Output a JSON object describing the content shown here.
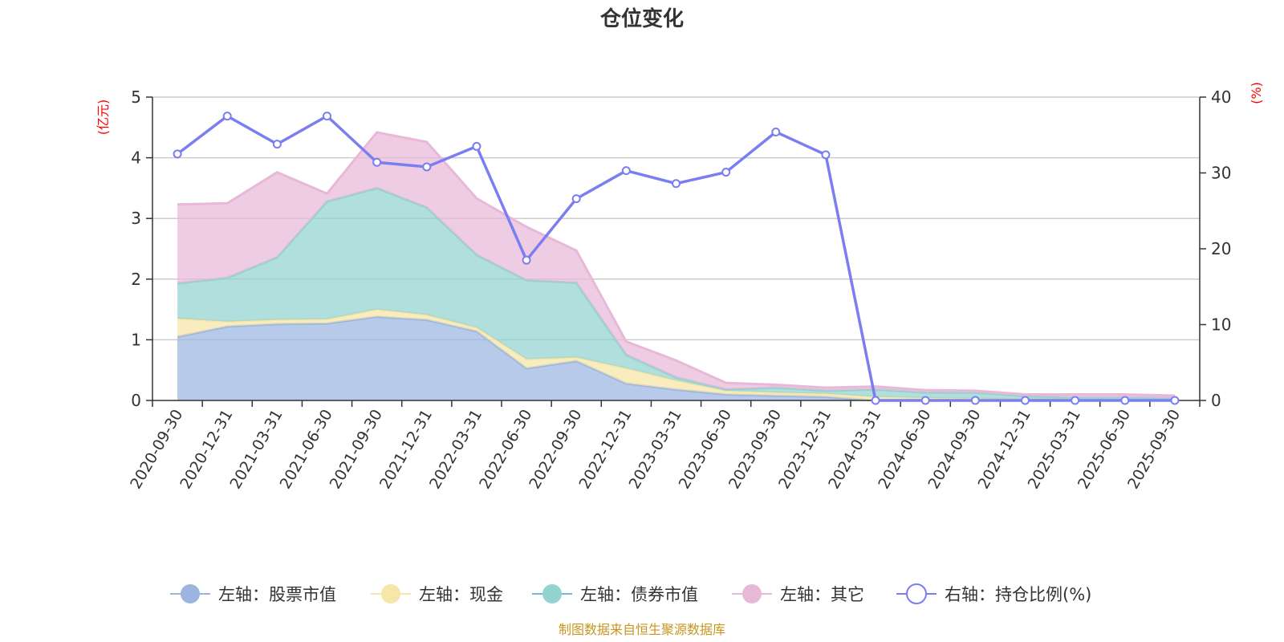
{
  "chart_data": {
    "type": "area",
    "title": "仓位变化",
    "left_unit": "(亿元)",
    "right_unit": "(%)",
    "left_ylim": [
      0,
      5
    ],
    "left_ticks": [
      0,
      1,
      2,
      3,
      4,
      5
    ],
    "right_ylim": [
      0,
      40
    ],
    "right_ticks": [
      0,
      10,
      20,
      30,
      40
    ],
    "grid": true,
    "legend_position": "bottom",
    "categories": [
      "2020-09-30",
      "2020-12-31",
      "2021-03-31",
      "2021-06-30",
      "2021-09-30",
      "2021-12-31",
      "2022-03-31",
      "2022-06-30",
      "2022-09-30",
      "2022-12-31",
      "2023-03-31",
      "2023-06-30",
      "2023-09-30",
      "2023-12-31",
      "2024-03-31",
      "2024-06-30",
      "2024-09-30",
      "2024-12-31",
      "2025-03-31",
      "2025-06-30",
      "2025-09-30"
    ],
    "stacked_series": [
      {
        "name": "左轴：股票市值",
        "color": "#9bb5e0",
        "values": [
          1.05,
          1.22,
          1.26,
          1.27,
          1.38,
          1.33,
          1.14,
          0.53,
          0.65,
          0.28,
          0.18,
          0.1,
          0.08,
          0.06,
          0.0,
          0.0,
          0.0,
          0.0,
          0.0,
          0.0,
          0.0
        ]
      },
      {
        "name": "左轴：现金",
        "color": "#f6e6a8",
        "values": [
          0.3,
          0.08,
          0.07,
          0.07,
          0.12,
          0.08,
          0.06,
          0.15,
          0.06,
          0.25,
          0.15,
          0.06,
          0.05,
          0.05,
          0.06,
          0.04,
          0.03,
          0.02,
          0.02,
          0.02,
          0.02
        ]
      },
      {
        "name": "左轴：债券市值",
        "color": "#92d3d0",
        "values": [
          0.58,
          0.72,
          1.03,
          1.94,
          2.0,
          1.77,
          1.2,
          1.3,
          1.23,
          0.22,
          0.05,
          0.02,
          0.08,
          0.05,
          0.12,
          0.09,
          0.1,
          0.05,
          0.03,
          0.03,
          0.02
        ]
      },
      {
        "name": "左轴：其它",
        "color": "#e8b8d8",
        "values": [
          1.3,
          1.23,
          1.4,
          0.13,
          0.92,
          1.08,
          0.93,
          0.88,
          0.53,
          0.22,
          0.28,
          0.11,
          0.05,
          0.05,
          0.05,
          0.04,
          0.03,
          0.03,
          0.05,
          0.05,
          0.04
        ]
      }
    ],
    "line_series": {
      "name": "右轴：持仓比例(%)",
      "color": "#7b7ef0",
      "values": [
        32.5,
        37.5,
        33.8,
        37.5,
        31.4,
        30.8,
        33.5,
        18.5,
        26.6,
        30.3,
        28.6,
        30.1,
        35.4,
        32.4,
        0.0,
        0.0,
        0.0,
        0.0,
        0.0,
        0.0,
        0.0
      ]
    }
  },
  "footer": {
    "source": "制图数据来自恒生聚源数据库"
  }
}
